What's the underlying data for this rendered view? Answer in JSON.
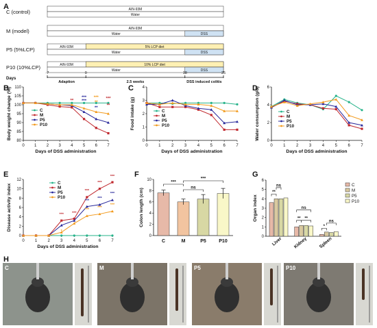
{
  "panels": {
    "A": "A",
    "B": "B",
    "C": "C",
    "D": "D",
    "E": "E",
    "F": "F",
    "G": "G",
    "H": "H"
  },
  "design": {
    "groups": [
      {
        "label": "C (control)",
        "top": "AIN-93M",
        "bottom": "Water",
        "has_lcp": false,
        "has_dss": false
      },
      {
        "label": "M (model)",
        "top": "AIN-93M",
        "bottom": "Water",
        "has_lcp": false,
        "has_dss": true
      },
      {
        "label": "P5 (5%LCP)",
        "top": "AIN-93M",
        "lcp": "5% LCP diet",
        "bottom": "Water",
        "has_lcp": true,
        "has_dss": true
      },
      {
        "label": "P10 (10%LCP)",
        "top": "AIN-93M",
        "lcp": "10% LCP diet",
        "bottom": "Water",
        "has_lcp": true,
        "has_dss": true
      }
    ],
    "dss_label": "DSS",
    "timeline_days_label": "Days",
    "timeline_ticks": [
      "-7",
      "0",
      "18",
      "25"
    ],
    "phases": [
      "Adaption",
      "2.5 weeks",
      "DSS induced colitis"
    ],
    "colors": {
      "lcp": "#fff0b3",
      "dss": "#cfe2f3",
      "bar": "#ffffff"
    }
  },
  "legend_series": [
    "C",
    "M",
    "P5",
    "P10"
  ],
  "series_colors": {
    "C": "#26b38a",
    "M": "#c0282e",
    "P5": "#27279a",
    "P10": "#f29a1c"
  },
  "stats": {
    "two": "**",
    "three": "***",
    "ns": "ns",
    "one": "*"
  },
  "chart_data": [
    {
      "panel": "B",
      "type": "line",
      "x": [
        0,
        1,
        2,
        3,
        4,
        5,
        6,
        7
      ],
      "xlabel": "Days of DSS administration",
      "ylabel": "Body weight change (%)",
      "ylim": [
        80,
        110
      ],
      "yticks": [
        80,
        85,
        90,
        95,
        100,
        105,
        110
      ],
      "series": [
        {
          "name": "C",
          "values": [
            101,
            101,
            101,
            101,
            101,
            101,
            101,
            101
          ]
        },
        {
          "name": "M",
          "values": [
            101,
            101,
            100,
            99,
            98.5,
            92,
            87,
            84
          ]
        },
        {
          "name": "P5",
          "values": [
            101,
            101,
            100.5,
            100,
            99.5,
            96,
            92,
            90
          ]
        },
        {
          "name": "P10",
          "values": [
            101,
            101,
            100.5,
            100,
            100,
            98,
            96,
            95
          ]
        }
      ]
    },
    {
      "panel": "C",
      "type": "line",
      "x": [
        0,
        1,
        2,
        3,
        4,
        5,
        6,
        7
      ],
      "xlabel": "Days of DSS administration",
      "ylabel": "Food intake (g)",
      "ylim": [
        0,
        4
      ],
      "yticks": [
        0,
        1,
        2,
        3,
        4
      ],
      "series": [
        {
          "name": "C",
          "values": [
            2.8,
            2.8,
            2.75,
            2.8,
            2.8,
            2.8,
            2.8,
            2.7
          ]
        },
        {
          "name": "M",
          "values": [
            2.8,
            2.5,
            2.5,
            2.5,
            2.3,
            1.9,
            0.8,
            0.8
          ]
        },
        {
          "name": "P5",
          "values": [
            2.7,
            2.7,
            3.0,
            2.6,
            2.4,
            2.3,
            1.3,
            1.4
          ]
        },
        {
          "name": "P10",
          "values": [
            2.8,
            2.7,
            2.8,
            2.7,
            2.7,
            2.6,
            2.2,
            2.2
          ]
        }
      ]
    },
    {
      "panel": "D",
      "type": "line",
      "x": [
        0,
        1,
        2,
        3,
        4,
        5,
        6,
        7
      ],
      "xlabel": "Days of DSS administration",
      "ylabel": "Water consumption (g/d)",
      "ylim": [
        0,
        6
      ],
      "yticks": [
        0,
        2,
        4,
        6
      ],
      "series": [
        {
          "name": "C",
          "values": [
            3.8,
            4.6,
            4.2,
            4.0,
            3.5,
            5.0,
            4.3,
            3.4
          ]
        },
        {
          "name": "M",
          "values": [
            3.7,
            4.4,
            4.1,
            4.0,
            3.6,
            3.5,
            1.7,
            1.3
          ]
        },
        {
          "name": "P5",
          "values": [
            3.7,
            4.5,
            4.0,
            4.0,
            4.1,
            3.8,
            2.0,
            1.7
          ]
        },
        {
          "name": "P10",
          "values": [
            3.8,
            4.3,
            3.9,
            4.1,
            4.3,
            4.6,
            2.8,
            2.3
          ]
        }
      ]
    },
    {
      "panel": "E",
      "type": "line",
      "x": [
        0,
        1,
        2,
        3,
        4,
        5,
        6,
        7
      ],
      "xlabel": "Days of DSS administration",
      "ylabel": "Disease activity index",
      "ylim": [
        0,
        12
      ],
      "yticks": [
        0,
        2,
        4,
        6,
        8,
        10,
        12
      ],
      "series": [
        {
          "name": "C",
          "values": [
            0,
            0,
            0,
            0,
            0,
            0,
            0,
            0
          ]
        },
        {
          "name": "M",
          "values": [
            0,
            0,
            0,
            3.2,
            3.6,
            8.2,
            10,
            11.4
          ]
        },
        {
          "name": "P5",
          "values": [
            0,
            0,
            0,
            2.2,
            3.2,
            6.2,
            6.6,
            7.6
          ]
        },
        {
          "name": "P10",
          "values": [
            0,
            0,
            0,
            0.7,
            2.6,
            4.2,
            4.6,
            5.2
          ]
        }
      ]
    },
    {
      "panel": "F",
      "type": "bar",
      "categories": [
        "C",
        "M",
        "P5",
        "P10"
      ],
      "values": [
        7.6,
        6.0,
        6.5,
        7.5
      ],
      "errors": [
        0.5,
        0.5,
        0.8,
        0.9
      ],
      "ylabel": "Colon length (cm)",
      "ylim": [
        0,
        10
      ],
      "yticks": [
        0,
        2,
        4,
        6,
        8,
        10
      ],
      "colors": [
        "#e7b9a8",
        "#f2c4a0",
        "#d8d8a4",
        "#f9f7c8"
      ]
    },
    {
      "panel": "G",
      "type": "bar",
      "categories": [
        "Liver",
        "Kidney",
        "Spleen"
      ],
      "ylabel": "Organ index",
      "ylim": [
        0,
        6
      ],
      "yticks": [
        0,
        1,
        2,
        3,
        4,
        5,
        6
      ],
      "series": [
        {
          "name": "C",
          "values": [
            3.6,
            1.0,
            0.2
          ]
        },
        {
          "name": "M",
          "values": [
            4.0,
            1.15,
            0.45
          ]
        },
        {
          "name": "P5",
          "values": [
            4.0,
            1.15,
            0.4
          ]
        },
        {
          "name": "P10",
          "values": [
            4.1,
            1.1,
            0.5
          ]
        }
      ],
      "colors": [
        "#e7b9a8",
        "#d9c9a0",
        "#d8d8a4",
        "#f9f7c8"
      ]
    }
  ],
  "photos": [
    {
      "label": "C",
      "bg": "#8d938c"
    },
    {
      "label": "M",
      "bg": "#7c7468"
    },
    {
      "label": "P5",
      "bg": "#8a7c6b"
    },
    {
      "label": "P10",
      "bg": "#7e7a72"
    }
  ]
}
